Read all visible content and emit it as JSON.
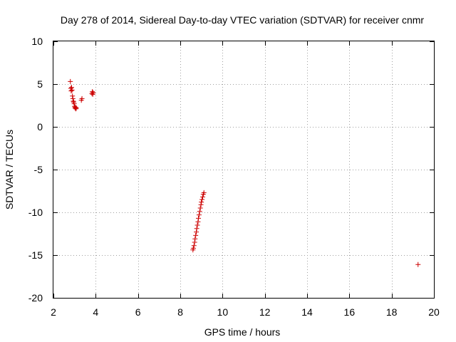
{
  "chart_data": {
    "type": "scatter",
    "title": "Day 278 of 2014, Sidereal Day-to-day VTEC variation (SDTVAR) for receiver cnmr",
    "xlabel": "GPS time / hours",
    "ylabel": "SDTVAR / TECUs",
    "xlim": [
      2,
      20
    ],
    "ylim": [
      -20,
      10
    ],
    "xticks": [
      "2",
      "4",
      "6",
      "8",
      "10",
      "12",
      "14",
      "16",
      "18",
      "20"
    ],
    "yticks": [
      "10",
      "5",
      "0",
      "-5",
      "-10",
      "-15",
      "-20"
    ],
    "grid": true,
    "marker": "+",
    "marker_color": "#cc0000",
    "series": [
      {
        "x": [
          2.8,
          2.82,
          2.84,
          2.86,
          2.88,
          2.9,
          2.92,
          2.94,
          2.96,
          2.98,
          3.0,
          3.02,
          3.04,
          3.06,
          3.08,
          3.32,
          3.35,
          3.82,
          3.84,
          3.86,
          3.88,
          8.6,
          8.62,
          8.65,
          8.68,
          8.7,
          8.73,
          8.76,
          8.78,
          8.81,
          8.84,
          8.86,
          8.89,
          8.92,
          8.95,
          8.98,
          9.0,
          9.03,
          9.06,
          9.09,
          9.12,
          19.25
        ],
        "y": [
          5.3,
          4.5,
          4.2,
          4.6,
          4.3,
          3.6,
          3.3,
          3.0,
          2.9,
          2.7,
          2.4,
          2.2,
          2.3,
          2.1,
          2.2,
          3.1,
          3.3,
          3.9,
          4.1,
          3.8,
          4.0,
          -14.4,
          -14.2,
          -13.9,
          -13.5,
          -13.1,
          -12.7,
          -12.3,
          -11.9,
          -11.5,
          -11.1,
          -10.7,
          -10.3,
          -9.9,
          -9.5,
          -9.1,
          -8.8,
          -8.5,
          -8.2,
          -7.9,
          -7.7,
          -16.1
        ]
      }
    ]
  }
}
